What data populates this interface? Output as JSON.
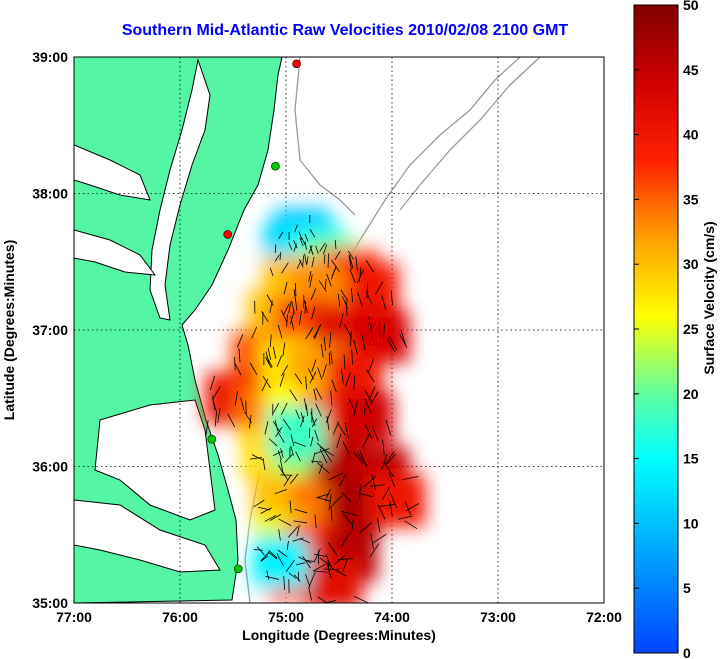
{
  "chart_data": {
    "type": "heatmap",
    "title": "Southern Mid-Atlantic Raw Velocities 2010/02/08 2100 GMT",
    "xlabel": "Longitude (Degrees:Minutes)",
    "ylabel": "Latitude (Degrees:Minutes)",
    "x_ticks": [
      "77:00",
      "76:00",
      "75:00",
      "74:00",
      "73:00",
      "72:00"
    ],
    "y_ticks": [
      "39:00",
      "38:00",
      "37:00",
      "36:00",
      "35:00"
    ],
    "xlim": [
      -77,
      -72
    ],
    "ylim": [
      35,
      39
    ],
    "grid": true,
    "colorbar": {
      "label": "Surface Velocity (cm/s)",
      "ticks": [
        "50",
        "45",
        "40",
        "35",
        "30",
        "25",
        "20",
        "15",
        "10",
        "5",
        "0"
      ],
      "range": [
        0,
        50
      ]
    },
    "field_cells": [
      {
        "lon": -74.85,
        "lat": 37.7,
        "v": 10
      },
      {
        "lon": -74.95,
        "lat": 37.6,
        "v": 12
      },
      {
        "lon": -74.75,
        "lat": 37.6,
        "v": 14
      },
      {
        "lon": -74.6,
        "lat": 37.5,
        "v": 20
      },
      {
        "lon": -74.4,
        "lat": 37.4,
        "v": 38
      },
      {
        "lon": -74.2,
        "lat": 37.3,
        "v": 40
      },
      {
        "lon": -74.95,
        "lat": 37.35,
        "v": 30
      },
      {
        "lon": -74.7,
        "lat": 37.3,
        "v": 33
      },
      {
        "lon": -75.1,
        "lat": 37.1,
        "v": 30
      },
      {
        "lon": -74.85,
        "lat": 37.05,
        "v": 36
      },
      {
        "lon": -74.5,
        "lat": 37.0,
        "v": 42
      },
      {
        "lon": -74.1,
        "lat": 36.95,
        "v": 43
      },
      {
        "lon": -75.25,
        "lat": 36.8,
        "v": 36
      },
      {
        "lon": -75.0,
        "lat": 36.75,
        "v": 28
      },
      {
        "lon": -74.7,
        "lat": 36.7,
        "v": 32
      },
      {
        "lon": -74.35,
        "lat": 36.65,
        "v": 40
      },
      {
        "lon": -75.5,
        "lat": 36.5,
        "v": 40
      },
      {
        "lon": -75.2,
        "lat": 36.4,
        "v": 34
      },
      {
        "lon": -74.95,
        "lat": 36.4,
        "v": 26
      },
      {
        "lon": -74.6,
        "lat": 36.35,
        "v": 38
      },
      {
        "lon": -74.25,
        "lat": 36.35,
        "v": 44
      },
      {
        "lon": -75.15,
        "lat": 36.1,
        "v": 28
      },
      {
        "lon": -74.85,
        "lat": 36.05,
        "v": 22
      },
      {
        "lon": -74.5,
        "lat": 36.0,
        "v": 46
      },
      {
        "lon": -74.1,
        "lat": 35.95,
        "v": 45
      },
      {
        "lon": -75.05,
        "lat": 35.75,
        "v": 30
      },
      {
        "lon": -74.7,
        "lat": 35.7,
        "v": 34
      },
      {
        "lon": -74.35,
        "lat": 35.7,
        "v": 47
      },
      {
        "lon": -73.95,
        "lat": 35.75,
        "v": 40
      },
      {
        "lon": -75.05,
        "lat": 35.45,
        "v": 25
      },
      {
        "lon": -74.75,
        "lat": 35.4,
        "v": 38
      },
      {
        "lon": -74.4,
        "lat": 35.35,
        "v": 46
      },
      {
        "lon": -74.9,
        "lat": 35.2,
        "v": 36
      },
      {
        "lon": -74.55,
        "lat": 35.15,
        "v": 42
      },
      {
        "lon": -75.05,
        "lat": 35.3,
        "v": 14
      },
      {
        "lon": -74.9,
        "lat": 36.25,
        "v": 18
      }
    ],
    "stations": [
      {
        "lon": -74.9,
        "lat": 38.95,
        "color": "#ff0000"
      },
      {
        "lon": -75.1,
        "lat": 38.2,
        "color": "#00cc00"
      },
      {
        "lon": -75.55,
        "lat": 37.7,
        "color": "#ff0000"
      },
      {
        "lon": -75.7,
        "lat": 36.2,
        "color": "#00cc00"
      },
      {
        "lon": -75.45,
        "lat": 35.25,
        "color": "#00cc00"
      }
    ]
  },
  "colors": {
    "land": "#54f5a4",
    "coast": "#000000",
    "bathymetry": "#9a9a9a",
    "title": "#0000ff"
  }
}
